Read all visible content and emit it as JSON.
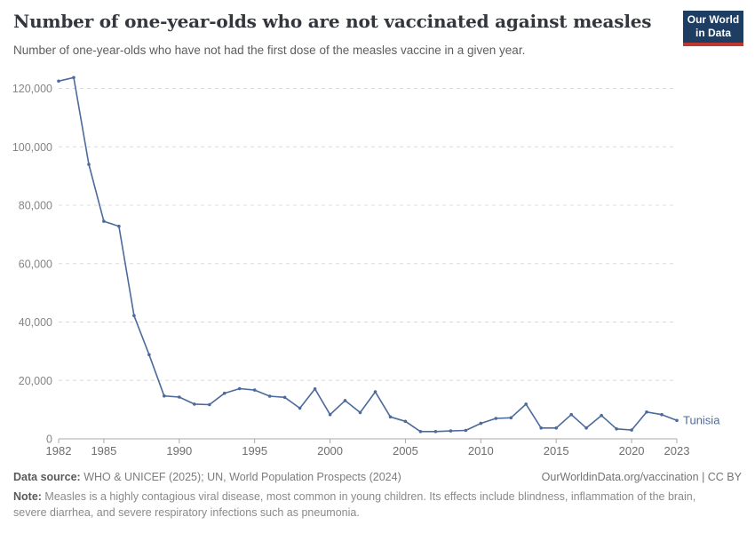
{
  "header": {
    "title": "Number of one-year-olds who are not vaccinated against measles",
    "subtitle": "Number of one-year-olds who have not had the first dose of the measles vaccine in a given year.",
    "logo": {
      "line1": "Our World",
      "line2": "in Data",
      "bg": "#1d3d63",
      "accent": "#c0372e"
    }
  },
  "chart_data": {
    "type": "line",
    "title": "Number of one-year-olds who are not vaccinated against measles",
    "xlabel": "",
    "ylabel": "",
    "x": [
      1982,
      1983,
      1984,
      1985,
      1986,
      1987,
      1988,
      1989,
      1990,
      1991,
      1992,
      1993,
      1994,
      1995,
      1996,
      1997,
      1998,
      1999,
      2000,
      2001,
      2002,
      2003,
      2004,
      2005,
      2006,
      2007,
      2008,
      2009,
      2010,
      2011,
      2012,
      2013,
      2014,
      2015,
      2016,
      2017,
      2018,
      2019,
      2020,
      2021,
      2022,
      2023
    ],
    "series": [
      {
        "name": "Tunisia",
        "color": "#4C6A9C",
        "values": [
          122500,
          123700,
          94000,
          74500,
          72800,
          42200,
          28800,
          14700,
          14300,
          11900,
          11700,
          15600,
          17200,
          16700,
          14600,
          14200,
          10500,
          17100,
          8300,
          13100,
          9000,
          16100,
          7500,
          6000,
          2500,
          2500,
          2700,
          2900,
          5300,
          7000,
          7200,
          11900,
          3700,
          3700,
          8300,
          3700,
          8000,
          3400,
          3000,
          9200,
          8300,
          6300
        ]
      }
    ],
    "xticks": [
      1982,
      1985,
      1990,
      1995,
      2000,
      2005,
      2010,
      2015,
      2020,
      2023
    ],
    "yticks": [
      0,
      20000,
      40000,
      60000,
      80000,
      100000,
      120000
    ],
    "ylim": [
      0,
      124000
    ],
    "xlim": [
      1982,
      2023
    ],
    "grid": "horizontal-dashed",
    "legend": "end-of-line-label",
    "colors": {
      "grid": "#dcdcdc",
      "axis": "#a9a9a9",
      "ytick_label": "#858585",
      "xtick_label": "#6e6e6e"
    }
  },
  "footer": {
    "source_label": "Data source:",
    "source_text": " WHO & UNICEF (2025); UN, World Population Prospects (2024)",
    "link_text": "OurWorldinData.org/vaccination | CC BY",
    "note_label": "Note:",
    "note_text": " Measles is a highly contagious viral disease, most common in young children. Its effects include blindness, inflammation of the brain, severe diarrhea, and severe respiratory infections such as pneumonia."
  }
}
